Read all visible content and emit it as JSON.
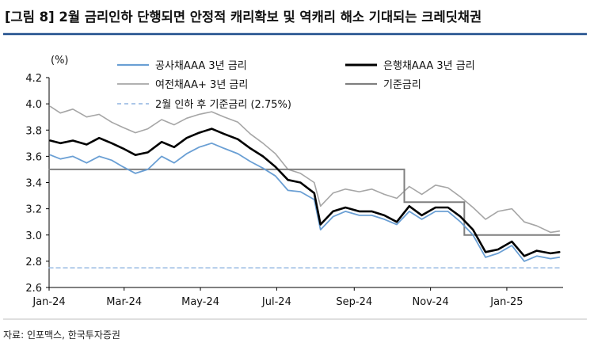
{
  "figure": {
    "title": "[그림 8] 2월 금리인하 단행되면 안정적 캐리확보 및 역캐리 해소 기대되는 크레딧채권",
    "source": "자료: 인포맥스, 한국투자증권",
    "accent_color": "#1f4e8c"
  },
  "chart_data": {
    "type": "line",
    "ylabel": "(%)",
    "ylim": [
      2.6,
      4.2
    ],
    "yticks": [
      2.6,
      2.8,
      3.0,
      3.2,
      3.4,
      3.6,
      3.8,
      4.0,
      4.2
    ],
    "ytick_labels": [
      "2.6",
      "2.8",
      "3.0",
      "3.2",
      "3.4",
      "3.6",
      "3.8",
      "4.0",
      "4.2"
    ],
    "xlim": [
      "2024-01-01",
      "2025-02-15"
    ],
    "xticks": [
      "2024-01-01",
      "2024-03-01",
      "2024-05-01",
      "2024-07-01",
      "2024-09-01",
      "2024-11-01",
      "2025-01-01"
    ],
    "xtick_labels": [
      "Jan-24",
      "Mar-24",
      "May-24",
      "Jul-24",
      "Sep-24",
      "Nov-24",
      "Jan-25"
    ],
    "grid": false,
    "legend_position": "top",
    "series": [
      {
        "name": "공사채AAA 3년 금리",
        "color": "#6a9fd4",
        "style": "solid",
        "points": [
          [
            "2024-01-02",
            3.61
          ],
          [
            "2024-01-10",
            3.58
          ],
          [
            "2024-01-20",
            3.6
          ],
          [
            "2024-01-31",
            3.55
          ],
          [
            "2024-02-10",
            3.6
          ],
          [
            "2024-02-20",
            3.57
          ],
          [
            "2024-02-29",
            3.52
          ],
          [
            "2024-03-10",
            3.47
          ],
          [
            "2024-03-20",
            3.5
          ],
          [
            "2024-03-31",
            3.6
          ],
          [
            "2024-04-10",
            3.55
          ],
          [
            "2024-04-20",
            3.62
          ],
          [
            "2024-04-30",
            3.67
          ],
          [
            "2024-05-10",
            3.7
          ],
          [
            "2024-05-20",
            3.66
          ],
          [
            "2024-05-31",
            3.62
          ],
          [
            "2024-06-10",
            3.56
          ],
          [
            "2024-06-20",
            3.51
          ],
          [
            "2024-06-30",
            3.45
          ],
          [
            "2024-07-10",
            3.34
          ],
          [
            "2024-07-20",
            3.33
          ],
          [
            "2024-07-31",
            3.27
          ],
          [
            "2024-08-05",
            3.04
          ],
          [
            "2024-08-15",
            3.14
          ],
          [
            "2024-08-25",
            3.18
          ],
          [
            "2024-09-05",
            3.15
          ],
          [
            "2024-09-15",
            3.15
          ],
          [
            "2024-09-25",
            3.12
          ],
          [
            "2024-10-05",
            3.08
          ],
          [
            "2024-10-15",
            3.18
          ],
          [
            "2024-10-25",
            3.12
          ],
          [
            "2024-11-05",
            3.18
          ],
          [
            "2024-11-15",
            3.18
          ],
          [
            "2024-11-25",
            3.1
          ],
          [
            "2024-12-05",
            3.0
          ],
          [
            "2024-12-15",
            2.83
          ],
          [
            "2024-12-25",
            2.86
          ],
          [
            "2025-01-05",
            2.92
          ],
          [
            "2025-01-15",
            2.8
          ],
          [
            "2025-01-25",
            2.84
          ],
          [
            "2025-02-05",
            2.82
          ],
          [
            "2025-02-12",
            2.83
          ]
        ]
      },
      {
        "name": "은행채AAA 3년 금리",
        "color": "#000000",
        "style": "solid",
        "points": [
          [
            "2024-01-02",
            3.72
          ],
          [
            "2024-01-10",
            3.7
          ],
          [
            "2024-01-20",
            3.72
          ],
          [
            "2024-01-31",
            3.69
          ],
          [
            "2024-02-10",
            3.74
          ],
          [
            "2024-02-20",
            3.7
          ],
          [
            "2024-02-29",
            3.66
          ],
          [
            "2024-03-10",
            3.61
          ],
          [
            "2024-03-20",
            3.63
          ],
          [
            "2024-03-31",
            3.71
          ],
          [
            "2024-04-10",
            3.67
          ],
          [
            "2024-04-20",
            3.74
          ],
          [
            "2024-04-30",
            3.78
          ],
          [
            "2024-05-10",
            3.81
          ],
          [
            "2024-05-20",
            3.77
          ],
          [
            "2024-05-31",
            3.73
          ],
          [
            "2024-06-10",
            3.66
          ],
          [
            "2024-06-20",
            3.6
          ],
          [
            "2024-06-30",
            3.52
          ],
          [
            "2024-07-10",
            3.42
          ],
          [
            "2024-07-20",
            3.4
          ],
          [
            "2024-07-31",
            3.32
          ],
          [
            "2024-08-05",
            3.08
          ],
          [
            "2024-08-15",
            3.18
          ],
          [
            "2024-08-25",
            3.21
          ],
          [
            "2024-09-05",
            3.18
          ],
          [
            "2024-09-15",
            3.18
          ],
          [
            "2024-09-25",
            3.15
          ],
          [
            "2024-10-05",
            3.1
          ],
          [
            "2024-10-15",
            3.22
          ],
          [
            "2024-10-25",
            3.15
          ],
          [
            "2024-11-05",
            3.21
          ],
          [
            "2024-11-15",
            3.21
          ],
          [
            "2024-11-25",
            3.14
          ],
          [
            "2024-12-05",
            3.04
          ],
          [
            "2024-12-15",
            2.87
          ],
          [
            "2024-12-25",
            2.89
          ],
          [
            "2025-01-05",
            2.95
          ],
          [
            "2025-01-15",
            2.84
          ],
          [
            "2025-01-25",
            2.88
          ],
          [
            "2025-02-05",
            2.86
          ],
          [
            "2025-02-12",
            2.87
          ]
        ]
      },
      {
        "name": "여전채AA+ 3년 금리",
        "color": "#a6a6a6",
        "style": "solid",
        "points": [
          [
            "2024-01-02",
            3.98
          ],
          [
            "2024-01-10",
            3.93
          ],
          [
            "2024-01-20",
            3.96
          ],
          [
            "2024-01-31",
            3.9
          ],
          [
            "2024-02-10",
            3.92
          ],
          [
            "2024-02-20",
            3.86
          ],
          [
            "2024-02-29",
            3.82
          ],
          [
            "2024-03-10",
            3.78
          ],
          [
            "2024-03-20",
            3.81
          ],
          [
            "2024-03-31",
            3.88
          ],
          [
            "2024-04-10",
            3.84
          ],
          [
            "2024-04-20",
            3.89
          ],
          [
            "2024-04-30",
            3.92
          ],
          [
            "2024-05-10",
            3.94
          ],
          [
            "2024-05-20",
            3.9
          ],
          [
            "2024-05-31",
            3.86
          ],
          [
            "2024-06-10",
            3.77
          ],
          [
            "2024-06-20",
            3.7
          ],
          [
            "2024-06-30",
            3.62
          ],
          [
            "2024-07-10",
            3.5
          ],
          [
            "2024-07-20",
            3.47
          ],
          [
            "2024-07-31",
            3.4
          ],
          [
            "2024-08-05",
            3.22
          ],
          [
            "2024-08-15",
            3.32
          ],
          [
            "2024-08-25",
            3.35
          ],
          [
            "2024-09-05",
            3.33
          ],
          [
            "2024-09-15",
            3.35
          ],
          [
            "2024-09-25",
            3.31
          ],
          [
            "2024-10-05",
            3.28
          ],
          [
            "2024-10-15",
            3.37
          ],
          [
            "2024-10-25",
            3.31
          ],
          [
            "2024-11-05",
            3.38
          ],
          [
            "2024-11-15",
            3.36
          ],
          [
            "2024-11-25",
            3.29
          ],
          [
            "2024-12-05",
            3.21
          ],
          [
            "2024-12-15",
            3.12
          ],
          [
            "2024-12-25",
            3.18
          ],
          [
            "2025-01-05",
            3.2
          ],
          [
            "2025-01-15",
            3.1
          ],
          [
            "2025-01-25",
            3.07
          ],
          [
            "2025-02-05",
            3.02
          ],
          [
            "2025-02-12",
            3.03
          ]
        ]
      },
      {
        "name": "기준금리",
        "color": "#7f7f7f",
        "style": "step",
        "points": [
          [
            "2024-01-01",
            3.5
          ],
          [
            "2024-10-11",
            3.5
          ],
          [
            "2024-10-11",
            3.25
          ],
          [
            "2024-11-28",
            3.25
          ],
          [
            "2024-11-28",
            3.0
          ],
          [
            "2025-02-12",
            3.0
          ]
        ]
      },
      {
        "name": "2월 인하 후 기준금리 (2.75%)",
        "color": "#8fb4e0",
        "style": "dashed",
        "points": [
          [
            "2024-01-01",
            2.75
          ],
          [
            "2025-02-12",
            2.75
          ]
        ]
      }
    ]
  }
}
